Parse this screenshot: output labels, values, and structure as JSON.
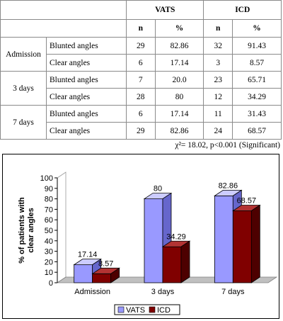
{
  "table": {
    "col_groups": [
      "VATS",
      "ICD"
    ],
    "sub_headers": [
      "n",
      "%",
      "n",
      "%"
    ],
    "groups": [
      {
        "label": "Admission",
        "rows": [
          {
            "label": "Blunted angles",
            "cells": [
              "29",
              "82.86",
              "32",
              "91.43"
            ]
          },
          {
            "label": "Clear angles",
            "cells": [
              "6",
              "17.14",
              "3",
              "8.57"
            ]
          }
        ]
      },
      {
        "label": "3 days",
        "rows": [
          {
            "label": "Blunted angles",
            "cells": [
              "7",
              "20.0",
              "23",
              "65.71"
            ]
          },
          {
            "label": "Clear angles",
            "cells": [
              "28",
              "80",
              "12",
              "34.29"
            ]
          }
        ]
      },
      {
        "label": "7 days",
        "rows": [
          {
            "label": "Blunted angles",
            "cells": [
              "6",
              "17.14",
              "11",
              "31.43"
            ]
          },
          {
            "label": "Clear angles",
            "cells": [
              "29",
              "82.86",
              "24",
              "68.57"
            ]
          }
        ]
      }
    ],
    "stat_note": "χ²= 18.02, p<0.001 (Significant)"
  },
  "chart_data": {
    "type": "bar",
    "categories": [
      "Admission",
      "3 days",
      "7 days"
    ],
    "series": [
      {
        "name": "VATS",
        "values": [
          17.14,
          80,
          82.86
        ],
        "labels": [
          "17.14",
          "80",
          "82.86"
        ],
        "color": "#9999ff",
        "side": "#6666cc",
        "top": "#ccccff"
      },
      {
        "name": "ICD",
        "values": [
          8.57,
          34.29,
          68.57
        ],
        "labels": [
          "8.57",
          "34.29",
          "68.57"
        ],
        "color": "#800000",
        "side": "#4d0000",
        "top": "#b33333"
      }
    ],
    "ylabel": "% of patients with clear angles",
    "ylim": [
      0,
      100
    ],
    "yticks": [
      0,
      10,
      20,
      30,
      40,
      50,
      60,
      70,
      80,
      90,
      100
    ],
    "grid": false,
    "legend": "bottom",
    "style": "3d"
  }
}
